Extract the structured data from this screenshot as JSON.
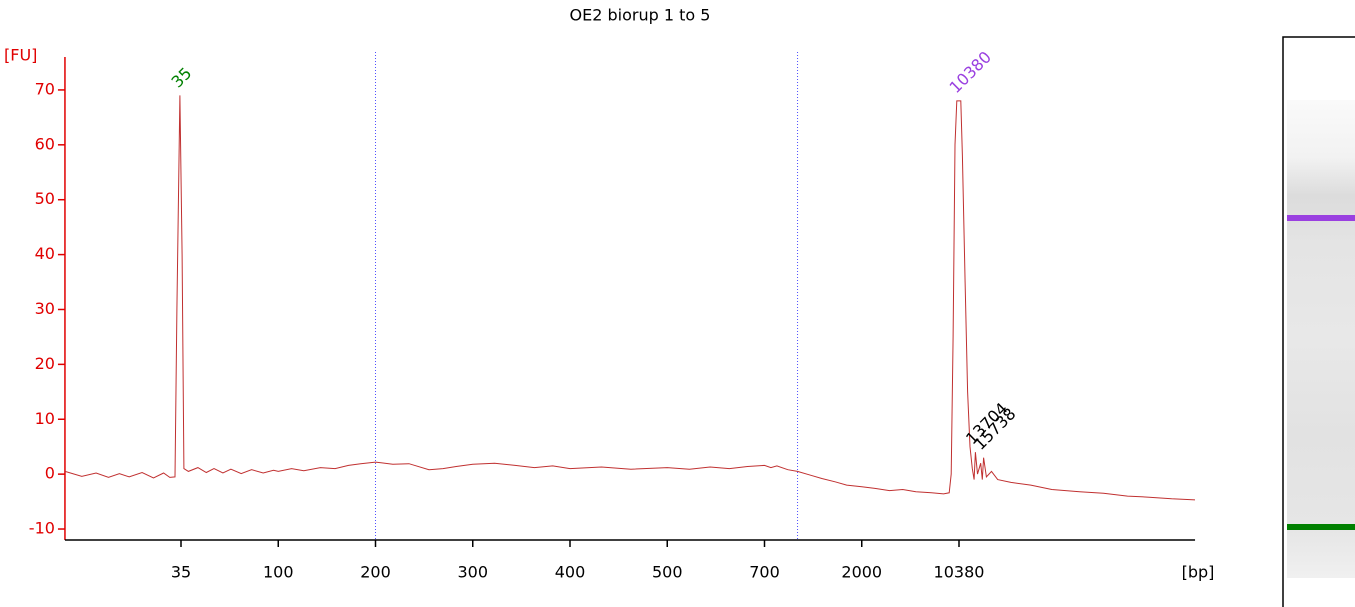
{
  "chart_data": {
    "type": "line",
    "title": "OE2 biorup 1 to 5",
    "ylabel": "[FU]",
    "xlabel": "[bp]",
    "ylim": [
      -12,
      76
    ],
    "yticks": [
      -10,
      0,
      10,
      20,
      30,
      40,
      50,
      60,
      70
    ],
    "xlim": [
      10,
      565000
    ],
    "xticks": [
      35,
      100,
      200,
      300,
      400,
      500,
      700,
      2000,
      10380
    ],
    "axis_color": "#e00000",
    "markers": [
      200,
      1000
    ],
    "marker_color": "#5050ff",
    "x": [
      10,
      12,
      14,
      16,
      18,
      20,
      23,
      26,
      29,
      31,
      32.8,
      33.5,
      34.6,
      35.4,
      36.1,
      37.9,
      42,
      46,
      50,
      55,
      60,
      67,
      75,
      85,
      95,
      100,
      110,
      120,
      135,
      150,
      165,
      180,
      200,
      215,
      230,
      250,
      265,
      280,
      300,
      320,
      340,
      360,
      380,
      400,
      430,
      460,
      500,
      540,
      580,
      620,
      660,
      700,
      750,
      800,
      900,
      1000,
      1150,
      1300,
      1500,
      1700,
      2000,
      2500,
      3200,
      4000,
      5000,
      6500,
      8000,
      8800,
      9100,
      9400,
      9700,
      10000,
      10700,
      11000,
      11500,
      12000,
      12500,
      13000,
      13400,
      13704,
      14200,
      15000,
      15400,
      15738,
      16500,
      18000,
      20000,
      25000,
      35000,
      50000,
      80000,
      120000,
      180000,
      260000,
      380000,
      565000
    ],
    "series": [
      {
        "color": "#c03030",
        "values": [
          0.5,
          -0.4,
          0.2,
          -0.6,
          0.1,
          -0.5,
          0.3,
          -0.7,
          0.2,
          -0.6,
          -0.5,
          30,
          69,
          40,
          1,
          0.5,
          1.2,
          0.3,
          1.0,
          0.2,
          0.9,
          0.1,
          0.8,
          0.2,
          0.7,
          0.5,
          1.0,
          0.6,
          1.2,
          1.0,
          1.6,
          1.9,
          2.2,
          1.8,
          1.9,
          0.8,
          1.0,
          1.4,
          1.8,
          2.0,
          1.6,
          1.2,
          1.5,
          1.0,
          1.3,
          0.9,
          1.2,
          0.9,
          1.3,
          1.0,
          1.4,
          1.6,
          1.2,
          1.5,
          0.8,
          0.5,
          -0.2,
          -0.8,
          -1.4,
          -2.0,
          -2.3,
          -2.6,
          -3.0,
          -2.8,
          -3.2,
          -3.4,
          -3.6,
          -3.4,
          0,
          25,
          60,
          68,
          68,
          58,
          35,
          15,
          5,
          1,
          -1,
          4,
          0,
          2,
          -1,
          3,
          -0.5,
          0.5,
          -1,
          -1.5,
          -2,
          -2.8,
          -3.2,
          -3.5,
          -4,
          -4.2,
          -4.5,
          -4.7
        ]
      }
    ],
    "peaks": [
      {
        "x": 35,
        "y": 69,
        "color": "#008000"
      },
      {
        "x": 10380,
        "y": 68,
        "color": "#9a40e0"
      },
      {
        "x": 13704,
        "y": 4,
        "color": "#000000"
      },
      {
        "x": 15738,
        "y": 3,
        "color": "#000000"
      }
    ]
  }
}
